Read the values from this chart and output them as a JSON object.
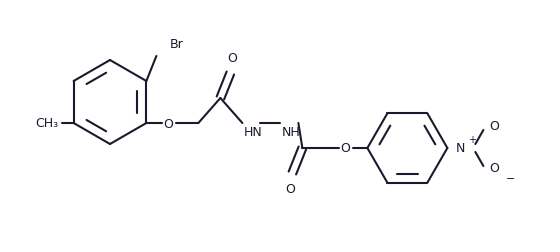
{
  "bg_color": "#ffffff",
  "line_color": "#1a1a2e",
  "line_width": 1.5,
  "figsize": [
    5.6,
    2.53
  ],
  "dpi": 100,
  "xlim": [
    0,
    5.6
  ],
  "ylim": [
    0,
    2.53
  ]
}
